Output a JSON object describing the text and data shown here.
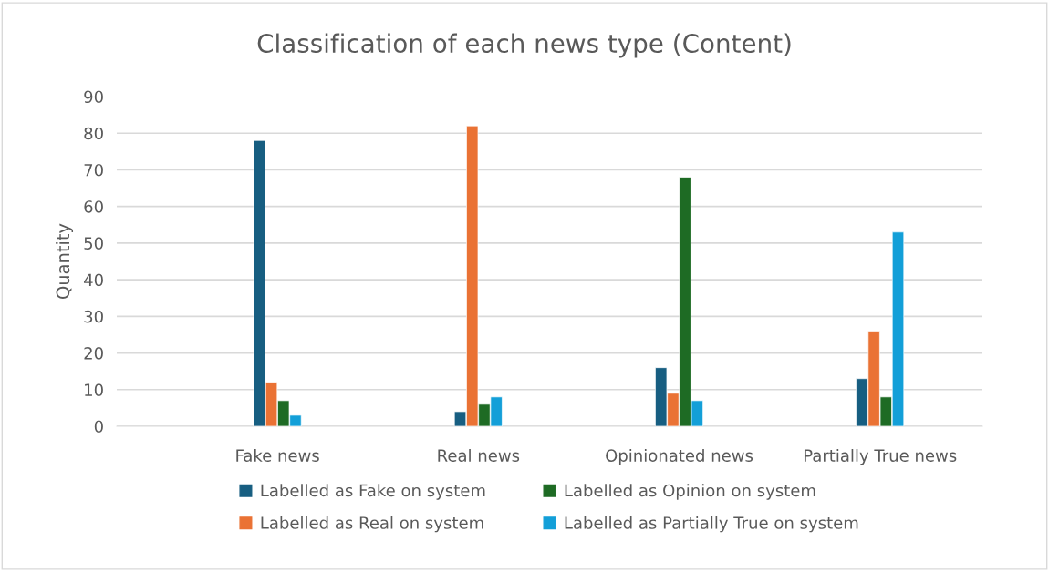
{
  "chart_data": {
    "type": "bar",
    "title": "Classification of each news type (Content)",
    "ylabel": "Quantity",
    "categories": [
      "Fake news",
      "Real news",
      "Opinionated news",
      "Partially True news"
    ],
    "series": [
      {
        "name": "Labelled as Fake on system",
        "color": "#175e81",
        "values": [
          78,
          4,
          16,
          13
        ]
      },
      {
        "name": "Labelled as Real on system",
        "color": "#ea7234",
        "values": [
          12,
          82,
          9,
          26
        ]
      },
      {
        "name": "Labelled as Opinion on system",
        "color": "#1e6b24",
        "values": [
          7,
          6,
          68,
          8
        ]
      },
      {
        "name": "Labelled as Partially True on system",
        "color": "#139fd8",
        "values": [
          3,
          8,
          7,
          53
        ]
      }
    ],
    "ylim": [
      0,
      90
    ],
    "yticks": [
      0,
      10,
      20,
      30,
      40,
      50,
      60,
      70,
      80,
      90
    ],
    "grid": "y",
    "legend": "bottom"
  }
}
